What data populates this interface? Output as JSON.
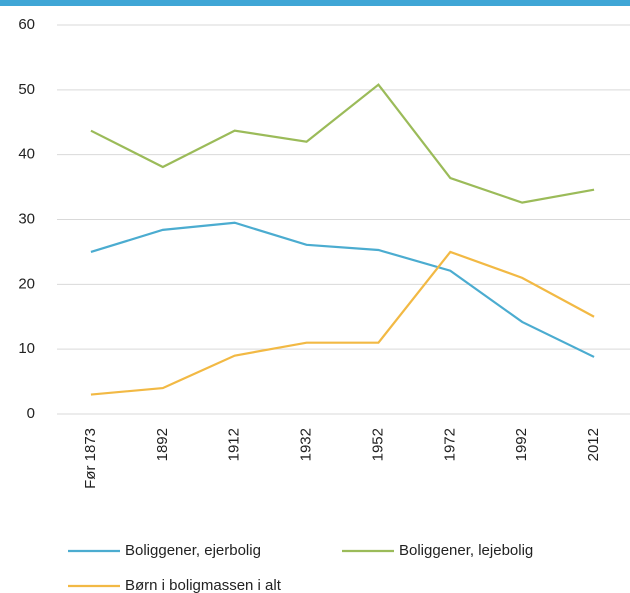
{
  "chart_data": {
    "type": "line",
    "categories": [
      "Før 1873",
      "1892",
      "1912",
      "1932",
      "1952",
      "1972",
      "1992",
      "2012"
    ],
    "series": [
      {
        "name": "Boliggener, ejerbolig",
        "color": "#4bacd0",
        "values": [
          25,
          28.4,
          29.5,
          26.1,
          25.3,
          22.1,
          14.2,
          8.8
        ]
      },
      {
        "name": "Boliggener, lejebolig",
        "color": "#9bbb59",
        "values": [
          43.7,
          38.1,
          43.7,
          42,
          50.8,
          36.4,
          32.6,
          34.6
        ]
      },
      {
        "name": "Børn i boligmassen i alt",
        "color": "#f2b944",
        "values": [
          3,
          4,
          9,
          11,
          11,
          25,
          21,
          15
        ]
      }
    ],
    "ylim": [
      0,
      60
    ],
    "yticks": [
      0,
      10,
      20,
      30,
      40,
      50,
      60
    ],
    "grid": true
  }
}
